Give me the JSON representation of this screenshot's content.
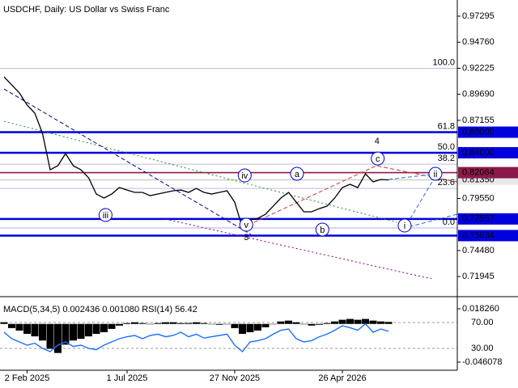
{
  "chart_data": [
    {
      "type": "line",
      "title": "USDCHF, Daily:  US Dollar vs Swiss Franc",
      "color": "#000000",
      "x": [
        0,
        1,
        2,
        3,
        4,
        5,
        6,
        7,
        8,
        9,
        10,
        11,
        12,
        13,
        14,
        15,
        16,
        17,
        18,
        19,
        20,
        21,
        22,
        23,
        24,
        25,
        26,
        27,
        28,
        29,
        30,
        31,
        32,
        33,
        34,
        35,
        36,
        37,
        38,
        39,
        40,
        41,
        42,
        43,
        44,
        45,
        46,
        47,
        48,
        49,
        50
      ],
      "values": [
        0.9139,
        0.906,
        0.8982,
        0.8864,
        0.8785,
        0.8589,
        0.8234,
        0.8274,
        0.8392,
        0.8274,
        0.8234,
        0.8156,
        0.7998,
        0.7959,
        0.7998,
        0.8061,
        0.8037,
        0.8014,
        0.8014,
        0.7982,
        0.7998,
        0.8014,
        0.803,
        0.8037,
        0.8014,
        0.8053,
        0.8014,
        0.7998,
        0.8014,
        0.803,
        0.7919,
        0.7668,
        0.7746,
        0.7762,
        0.7801,
        0.788,
        0.7959,
        0.8014,
        0.7919,
        0.7825,
        0.7825,
        0.7856,
        0.788,
        0.7959,
        0.8061,
        0.8093,
        0.8061,
        0.8195,
        0.8116,
        0.814,
        0.8135
      ],
      "xlim": [
        0,
        50
      ],
      "xticks": [
        {
          "value": 3,
          "label": "2 Feb 2025"
        },
        {
          "value": 16,
          "label": "1 Jul 2025"
        },
        {
          "value": 30,
          "label": "27 Nov 2025"
        },
        {
          "value": 44,
          "label": "26 Apr 2026"
        }
      ],
      "ylim": [
        0.7172,
        0.9887
      ],
      "yticks": [
        0.97295,
        {
          "value": 0.9476,
          "label": "0.94760"
        },
        0.92225,
        {
          "value": 0.8969,
          "label": "0.89690"
        },
        0.87155,
        {
          "value": 0.7955,
          "label": "0.79550"
        },
        {
          "value": 0.7448,
          "label": "0.74480"
        },
        0.71945
      ],
      "levels": [
        {
          "value": 0.86,
          "label": "0.86000",
          "color": "#0000dd"
        },
        {
          "value": 0.84,
          "label": "0.84000",
          "color": "#0000dd"
        },
        {
          "value": 0.82064,
          "label": "0.82064",
          "color": "#8b1a4a"
        },
        {
          "value": 0.77557,
          "label": "0.77557",
          "color": "#0000dd"
        },
        {
          "value": 0.75934,
          "label": "0.75934",
          "color": "#0000dd"
        }
      ],
      "last_price": {
        "value": 0.8135,
        "label": "0.81350"
      },
      "fib": [
        {
          "value": 0.92225,
          "label": "100.0"
        },
        {
          "value": 0.86,
          "label": "61.8"
        },
        {
          "value": 0.84,
          "label": "50.0"
        },
        {
          "value": 0.8289,
          "label": "38.2"
        },
        {
          "value": 0.8053,
          "label": "23.6"
        },
        {
          "value": 0.7668,
          "label": "0.0"
        }
      ],
      "trendlines": [
        {
          "color": "#00008b",
          "dash": "dash",
          "x": [
            0,
            32.1
          ],
          "y": [
            0.9021,
            0.7605
          ]
        },
        {
          "color": "#2a8a2a",
          "dash": "dot",
          "x": [
            0,
            51.1
          ],
          "y": [
            0.8706,
            0.7723
          ]
        },
        {
          "color": "#800080",
          "dash": "dot",
          "x": [
            20.5,
            58.9
          ],
          "y": [
            0.7762,
            0.7117
          ]
        },
        {
          "color": "#cc3333",
          "dash": "dash",
          "x": [
            31,
            48.4,
            58.9
          ],
          "y": [
            0.7668,
            0.8274,
            0.8116
          ]
        },
        {
          "color": "#3366cc",
          "dash": "dash",
          "x": [
            50,
            56.3,
            52.1,
            58.9
          ],
          "y": [
            0.814,
            0.8195,
            0.7668,
            0.7801
          ]
        }
      ],
      "annotations": [
        {
          "text": "iii",
          "x": 13.2,
          "y": 0.7794,
          "style": "circle",
          "color": "#0000cc"
        },
        {
          "text": "iv",
          "x": 31.3,
          "y": 0.8179,
          "style": "circle",
          "color": "#0000cc"
        },
        {
          "text": "v",
          "x": 31.5,
          "y": 0.7699,
          "style": "circle",
          "color": "#0000cc"
        },
        {
          "text": "a",
          "x": 38.1,
          "y": 0.8195,
          "style": "circle",
          "color": "#0000cc"
        },
        {
          "text": "b",
          "x": 41.4,
          "y": 0.7652,
          "style": "circle",
          "color": "#0000cc"
        },
        {
          "text": "c",
          "x": 48.6,
          "y": 0.8344,
          "style": "circle",
          "color": "#0000cc"
        },
        {
          "text": "ii",
          "x": 56.1,
          "y": 0.8195,
          "style": "circle",
          "color": "#0000cc"
        },
        {
          "text": "i",
          "x": 52.1,
          "y": 0.7691,
          "style": "circle",
          "color": "#0000cc"
        },
        {
          "text": "3",
          "x": 31.5,
          "y": 0.7581,
          "style": "plain",
          "color": "#cc3333"
        },
        {
          "text": "4",
          "x": 48.5,
          "y": 0.8517,
          "style": "plain",
          "color": "#cc3333"
        }
      ]
    },
    {
      "type": "combo",
      "title": "MACD(5,34,5) 0.002436 0.001080 RSI(14) 56.42",
      "x": [
        0,
        1,
        2,
        3,
        4,
        5,
        6,
        7,
        8,
        9,
        10,
        11,
        12,
        13,
        14,
        15,
        16,
        17,
        18,
        19,
        20,
        21,
        22,
        23,
        24,
        25,
        26,
        27,
        28,
        29,
        30,
        31,
        32,
        33,
        34,
        35,
        36,
        37,
        38,
        39,
        40,
        41,
        42,
        43,
        44,
        45,
        46,
        47,
        48,
        49,
        50
      ],
      "xlim": [
        0,
        50
      ],
      "ylim": [
        -0.0529,
        0.0251
      ],
      "yticks": [
        {
          "value": 0.01826,
          "label": "0.018260"
        },
        {
          "value": -0.046078,
          "label": "-0.046078"
        }
      ],
      "y2lim": [
        0,
        100
      ],
      "y2ticks": [
        {
          "value": 70,
          "label": "70.00"
        },
        {
          "value": 30,
          "label": "30.00"
        }
      ],
      "series": [
        {
          "type": "bar",
          "color": "#000000",
          "values": [
            0.002,
            -0.005,
            -0.008,
            -0.012,
            -0.015,
            -0.02,
            -0.03,
            -0.035,
            -0.025,
            -0.02,
            -0.018,
            -0.015,
            -0.012,
            -0.01,
            -0.006,
            -0.002,
            0.001,
            0.002,
            0.001,
            0,
            0.001,
            0.002,
            0.002,
            0.001,
            0.001,
            0.002,
            0.001,
            0,
            -0.001,
            0,
            -0.005,
            -0.012,
            -0.01,
            -0.008,
            -0.004,
            0,
            0.003,
            0.004,
            0.002,
            0,
            -0.002,
            -0.001,
            0.001,
            0.003,
            0.005,
            0.006,
            0.005,
            0.006,
            0.004,
            0.003,
            0.002436
          ]
        },
        {
          "type": "line",
          "axis": "y2",
          "color": "#1e6fff",
          "values": [
            55,
            45,
            40,
            35,
            38,
            30,
            25,
            35,
            40,
            33,
            35,
            30,
            28,
            35,
            40,
            45,
            48,
            50,
            45,
            50,
            52,
            48,
            50,
            55,
            48,
            52,
            46,
            48,
            50,
            52,
            35,
            25,
            40,
            42,
            45,
            52,
            58,
            60,
            45,
            40,
            42,
            48,
            52,
            58,
            65,
            62,
            58,
            68,
            55,
            60,
            56.42
          ]
        }
      ]
    }
  ]
}
